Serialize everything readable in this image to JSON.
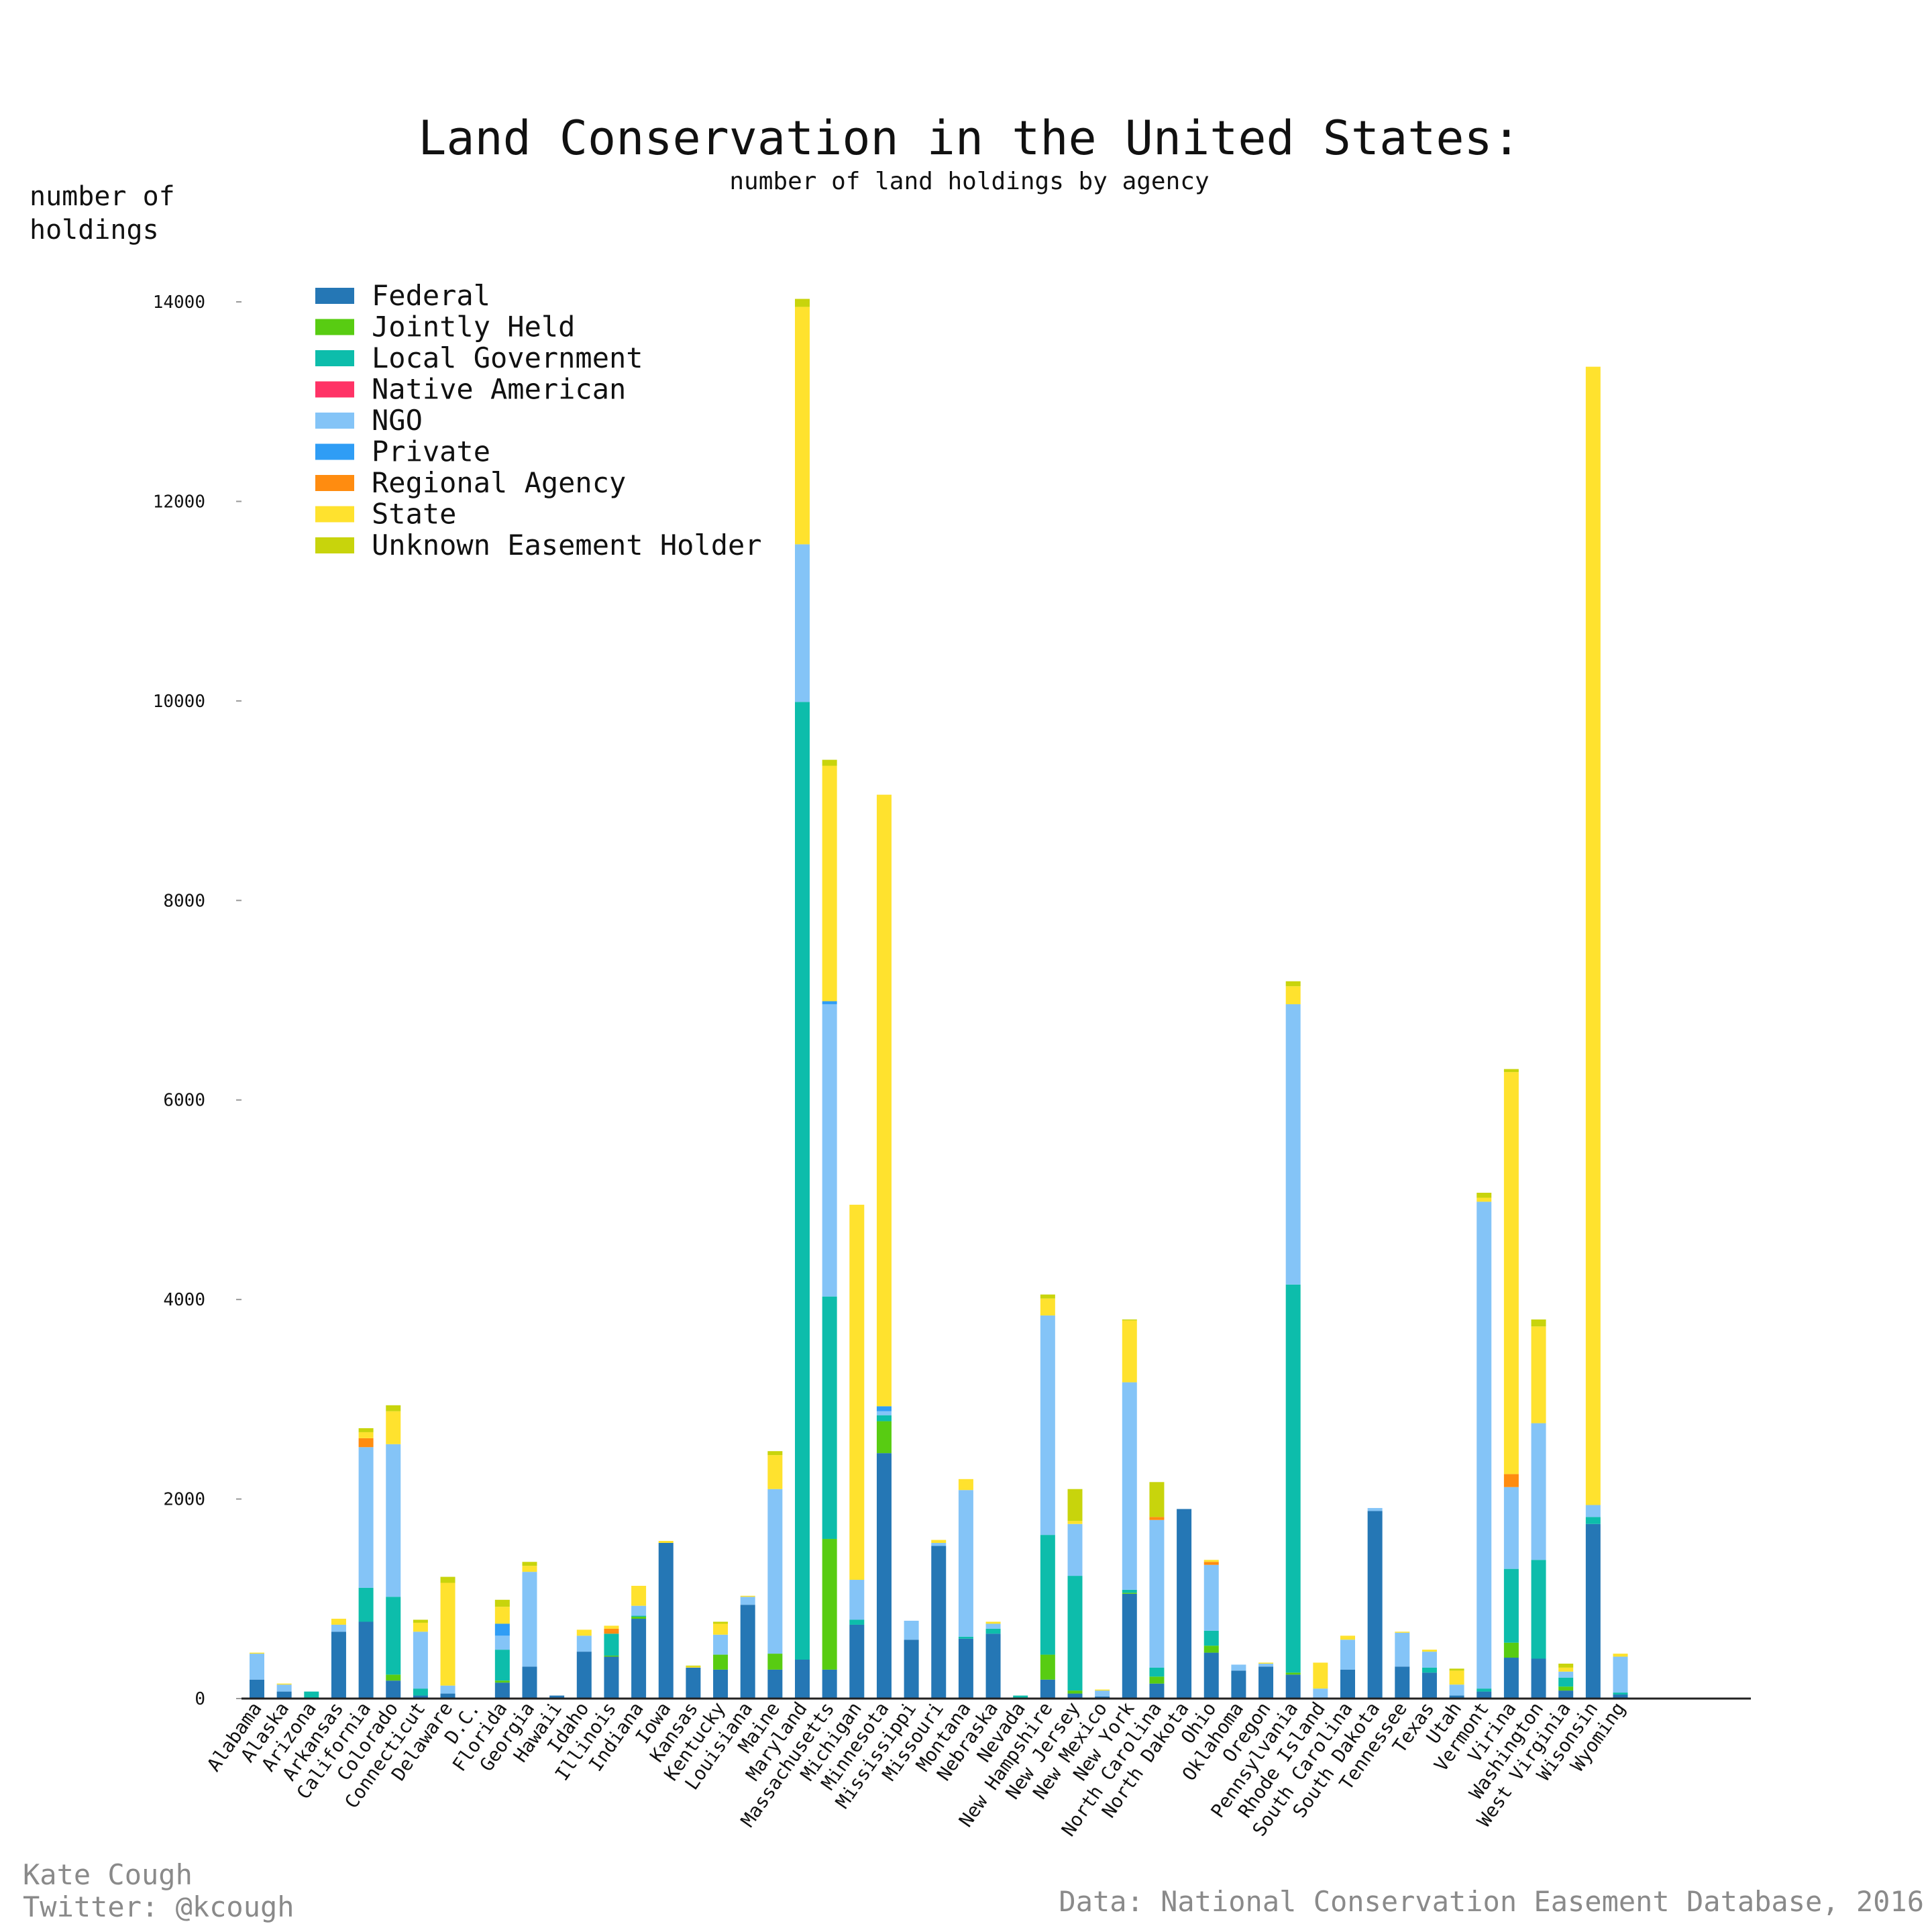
{
  "chart_data": {
    "type": "bar",
    "stacked": true,
    "title": "Land Conservation in the United States:",
    "subtitle": "number of land holdings by agency",
    "ylabel": [
      "number of",
      "holdings"
    ],
    "ylim": [
      0,
      14000
    ],
    "yticks": [
      0,
      2000,
      4000,
      6000,
      8000,
      10000,
      12000,
      14000
    ],
    "grid": false,
    "legend_position": "top-left",
    "categories": [
      "Alabama",
      "Alaska",
      "Arizona",
      "Arkansas",
      "California",
      "Colorado",
      "Connecticut",
      "Delaware",
      "D.C.",
      "Florida",
      "Georgia",
      "Hawaii",
      "Idaho",
      "Illinois",
      "Indiana",
      "Iowa",
      "Kansas",
      "Kentucky",
      "Louisiana",
      "Maine",
      "Maryland",
      "Massachusetts",
      "Michigan",
      "Minnesota",
      "Mississippi",
      "Missouri",
      "Montana",
      "Nebraska",
      "Nevada",
      "New Hampshire",
      "New Jersey",
      "New Mexico",
      "New York",
      "North Carolina",
      "North Dakota",
      "Ohio",
      "Oklahoma",
      "Oregon",
      "Pennsylvania",
      "Rhode Island",
      "South Carolina",
      "South Dakota",
      "Tennessee",
      "Texas",
      "Utah",
      "Vermont",
      "Virina",
      "Washington",
      "West Virginia",
      "Wisonsin",
      "Wyoming"
    ],
    "series": [
      {
        "name": "Federal",
        "color": "#2577b5",
        "values": [
          190,
          70,
          10,
          670,
          770,
          180,
          30,
          50,
          0,
          160,
          320,
          30,
          470,
          420,
          800,
          1560,
          310,
          290,
          940,
          290,
          390,
          290,
          740,
          2460,
          590,
          1530,
          600,
          650,
          10,
          190,
          50,
          20,
          1050,
          150,
          1900,
          460,
          280,
          320,
          240,
          10,
          290,
          1880,
          320,
          260,
          30,
          70,
          410,
          400,
          80,
          1750,
          40
        ]
      },
      {
        "name": "Jointly Held",
        "color": "#58cc12",
        "values": [
          0,
          0,
          0,
          0,
          0,
          60,
          0,
          0,
          0,
          20,
          0,
          0,
          0,
          10,
          20,
          0,
          0,
          150,
          0,
          160,
          0,
          1310,
          0,
          320,
          0,
          0,
          0,
          0,
          0,
          250,
          30,
          0,
          10,
          70,
          0,
          70,
          0,
          0,
          20,
          0,
          0,
          0,
          0,
          0,
          0,
          0,
          150,
          0,
          40,
          0,
          0
        ]
      },
      {
        "name": "Local Government",
        "color": "#0dbdab",
        "values": [
          0,
          0,
          60,
          0,
          340,
          780,
          70,
          0,
          0,
          310,
          0,
          0,
          0,
          220,
          10,
          0,
          0,
          0,
          0,
          0,
          9600,
          2430,
          50,
          60,
          0,
          0,
          20,
          50,
          20,
          1200,
          1150,
          0,
          30,
          90,
          0,
          150,
          0,
          0,
          3890,
          0,
          0,
          0,
          0,
          50,
          0,
          30,
          740,
          990,
          90,
          70,
          20
        ]
      },
      {
        "name": "Native American",
        "color": "#ff3366",
        "values": [
          0,
          0,
          0,
          0,
          0,
          0,
          0,
          0,
          0,
          0,
          0,
          0,
          0,
          0,
          0,
          0,
          0,
          0,
          0,
          0,
          0,
          0,
          0,
          0,
          0,
          0,
          0,
          0,
          0,
          0,
          0,
          0,
          0,
          0,
          0,
          0,
          0,
          0,
          0,
          0,
          0,
          0,
          0,
          0,
          0,
          0,
          0,
          0,
          0,
          0,
          0
        ]
      },
      {
        "name": "NGO",
        "color": "#84c4f7",
        "values": [
          260,
          70,
          0,
          70,
          1410,
          1530,
          570,
          80,
          0,
          140,
          950,
          0,
          160,
          0,
          100,
          0,
          0,
          200,
          80,
          1650,
          1580,
          2930,
          400,
          40,
          190,
          30,
          1470,
          50,
          0,
          2200,
          520,
          60,
          2080,
          1480,
          0,
          660,
          60,
          30,
          2810,
          90,
          300,
          30,
          340,
          160,
          110,
          4880,
          820,
          1370,
          60,
          120,
          360
        ]
      },
      {
        "name": "Private",
        "color": "#2f9df5",
        "values": [
          0,
          0,
          0,
          0,
          0,
          0,
          0,
          0,
          0,
          120,
          0,
          0,
          0,
          0,
          0,
          0,
          0,
          0,
          0,
          0,
          0,
          30,
          0,
          50,
          0,
          0,
          0,
          0,
          0,
          0,
          0,
          0,
          0,
          0,
          0,
          0,
          0,
          0,
          0,
          0,
          0,
          0,
          0,
          0,
          0,
          0,
          0,
          0,
          0,
          0,
          0
        ]
      },
      {
        "name": "Regional Agency",
        "color": "#ff8c10",
        "values": [
          0,
          0,
          0,
          0,
          90,
          0,
          0,
          0,
          0,
          0,
          0,
          0,
          0,
          50,
          0,
          0,
          0,
          0,
          0,
          0,
          0,
          0,
          0,
          0,
          0,
          0,
          0,
          0,
          0,
          0,
          0,
          0,
          0,
          30,
          0,
          30,
          0,
          0,
          0,
          0,
          0,
          0,
          0,
          0,
          0,
          0,
          130,
          0,
          0,
          0,
          0
        ]
      },
      {
        "name": "State",
        "color": "#ffe22e",
        "values": [
          10,
          10,
          0,
          60,
          60,
          330,
          90,
          1030,
          0,
          170,
          60,
          0,
          60,
          30,
          200,
          20,
          10,
          110,
          10,
          340,
          2380,
          2360,
          3760,
          6130,
          0,
          30,
          110,
          20,
          0,
          170,
          30,
          10,
          620,
          0,
          0,
          20,
          0,
          10,
          180,
          260,
          40,
          0,
          10,
          20,
          140,
          40,
          4030,
          970,
          40,
          11410,
          30
        ]
      },
      {
        "name": "Unknown Easement Holder",
        "color": "#c8d40c",
        "values": [
          0,
          0,
          0,
          0,
          40,
          60,
          30,
          60,
          0,
          70,
          40,
          0,
          0,
          0,
          0,
          0,
          10,
          20,
          0,
          40,
          80,
          60,
          0,
          0,
          0,
          0,
          0,
          0,
          0,
          40,
          320,
          0,
          10,
          350,
          0,
          0,
          0,
          0,
          50,
          0,
          0,
          0,
          0,
          0,
          20,
          50,
          30,
          70,
          40,
          0,
          0
        ]
      }
    ]
  },
  "credits": {
    "author": "Kate Cough",
    "twitter": "Twitter: @kcough",
    "source": "Data: National Conservation Easement Database, 2016"
  }
}
